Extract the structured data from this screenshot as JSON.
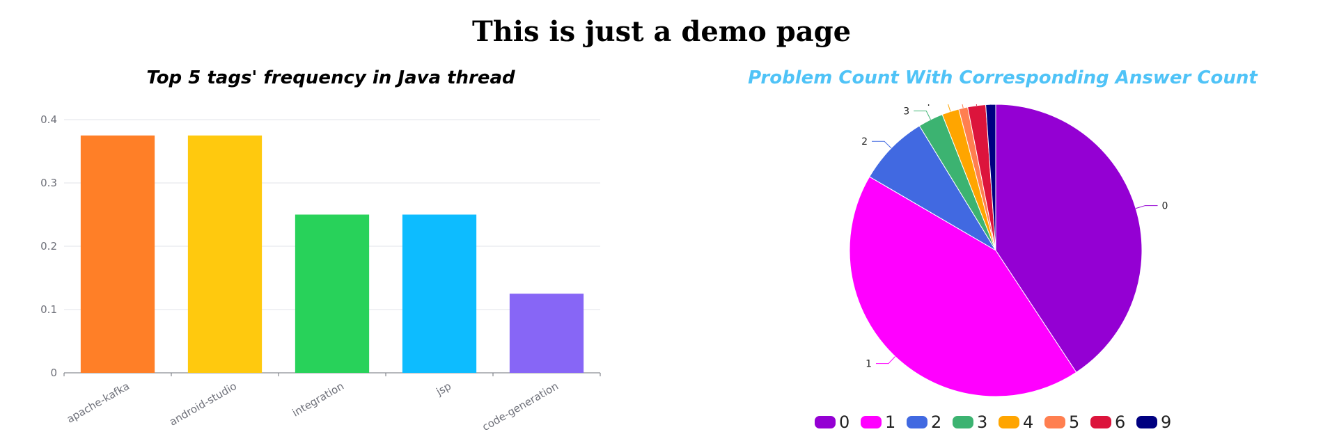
{
  "page": {
    "title": "This is just a demo page"
  },
  "chart_data": [
    {
      "type": "bar",
      "title": "Top 5 tags' frequency in Java thread",
      "title_color": "#000000",
      "categories": [
        "apache-kafka",
        "android-studio",
        "integration",
        "jsp",
        "code-generation"
      ],
      "values": [
        0.375,
        0.375,
        0.25,
        0.25,
        0.125
      ],
      "colors": [
        "#ff7f27",
        "#ffc90e",
        "#28d25a",
        "#0dbcff",
        "#8766f6"
      ],
      "xlabel": "",
      "ylabel": "",
      "ylim": [
        0,
        0.4
      ],
      "yticks": [
        0,
        0.1,
        0.2,
        0.3,
        0.4
      ],
      "ytick_labels": [
        "0",
        "0.1",
        "0.2",
        "0.3",
        "0.4"
      ],
      "grid": true,
      "tick_label_rotation": "slanted"
    },
    {
      "type": "pie",
      "title": "Problem Count With Corresponding Answer Count",
      "title_color": "#4fc3f7",
      "labels": [
        "0",
        "1",
        "2",
        "3",
        "4",
        "5",
        "6",
        "9"
      ],
      "values": [
        41.0,
        43.0,
        7.9,
        2.8,
        1.9,
        1.0,
        2.0,
        1.1
      ],
      "colors": [
        "#9400d3",
        "#ff00ff",
        "#4169e1",
        "#3cb371",
        "#ffa500",
        "#ff7f50",
        "#dc143c",
        "#000080"
      ],
      "legend": "bottom"
    }
  ]
}
